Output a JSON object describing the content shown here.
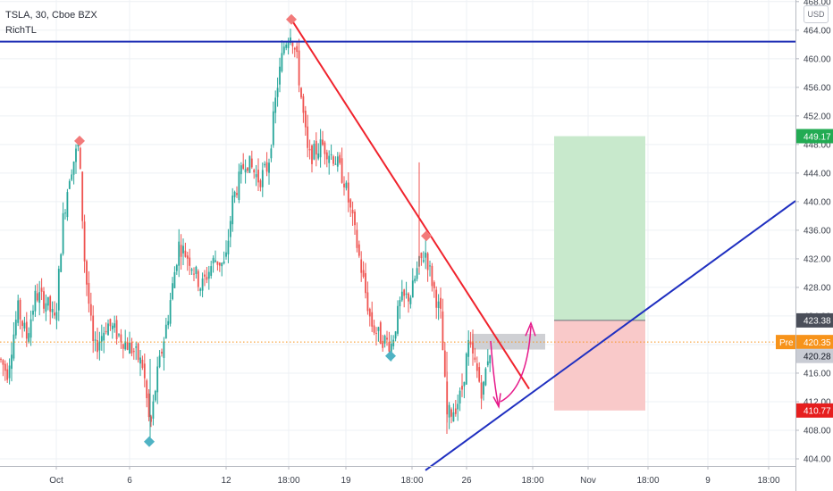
{
  "header": {
    "symbol_line": "TSLA, 30, Cboe BZX",
    "indicator": "RichTL"
  },
  "currency_button": "USD",
  "chart_data": {
    "type": "candlestick",
    "title": "",
    "x_ticks": [
      "Oct",
      "6",
      "12",
      "18:00",
      "19",
      "18:00",
      "26",
      "18:00",
      "Nov",
      "18:00",
      "9",
      "18:00"
    ],
    "y_ticks": [
      404,
      408,
      412,
      416,
      420,
      424,
      428,
      432,
      436,
      440,
      444,
      448,
      452,
      456,
      460,
      464,
      468
    ],
    "ylim": [
      403,
      467.6
    ],
    "price_labels": [
      {
        "text": "449.17",
        "value": 449.17,
        "color": "#22ab53"
      },
      {
        "text": "423.38",
        "value": 423.38,
        "color": "#4a4e59"
      },
      {
        "text": "Pre",
        "value": 420.35,
        "color": "#f7931a"
      },
      {
        "text": "420.35",
        "value": 420.35,
        "color": "#f7931a"
      },
      {
        "text": "420.28",
        "value": 420.28,
        "color": "#c9ccd4"
      },
      {
        "text": "410.77",
        "value": 410.77,
        "color": "#e61e1e"
      }
    ],
    "horizontal_resistance": 462.4,
    "premarket_price": 420.35,
    "trendline_down": {
      "start_value": 465.5,
      "end_value": 413.8
    },
    "trendline_up": {
      "start_value": 402.4,
      "end_value": 440.1
    },
    "position": {
      "entry": 423.38,
      "target": 449.17,
      "stop": 410.77
    },
    "supply_zone": {
      "low": 419.3,
      "high": 421.5
    },
    "pivot_highs": [
      448.5,
      465.5,
      435.2
    ],
    "pivot_lows": [
      406.4,
      418.4
    ],
    "colors": {
      "up": "#26a69a",
      "down": "#ef5350",
      "resistance": "#1f2fb5",
      "trend_down": "#f0232d",
      "trend_up": "#1f2fc0",
      "profit": "#c8e9cc",
      "loss": "#f9c9c9",
      "arrow": "#e6198a"
    }
  }
}
